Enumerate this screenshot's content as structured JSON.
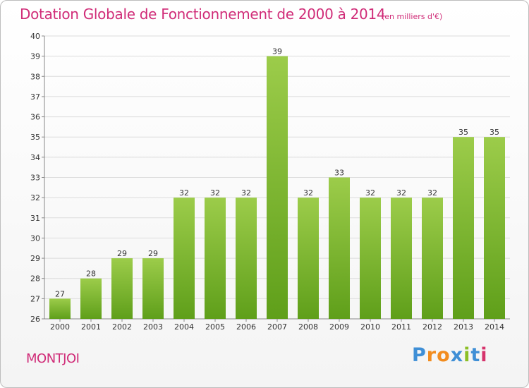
{
  "chart_data": {
    "type": "bar",
    "title": "Dotation Globale de Fonctionnement de 2000 à 2014",
    "subtitle": "(en milliers d'€)",
    "categories": [
      "2000",
      "2001",
      "2002",
      "2003",
      "2004",
      "2005",
      "2006",
      "2007",
      "2008",
      "2009",
      "2010",
      "2011",
      "2012",
      "2013",
      "2014"
    ],
    "values": [
      27,
      28,
      29,
      29,
      32,
      32,
      32,
      39,
      32,
      33,
      32,
      32,
      32,
      35,
      35
    ],
    "ylim": [
      26,
      40
    ],
    "yticks": [
      26,
      27,
      28,
      29,
      30,
      31,
      32,
      33,
      34,
      35,
      36,
      37,
      38,
      39,
      40
    ],
    "grid": true,
    "colors": {
      "bar_light": "#9ccc4a",
      "bar_dark": "#5f9f1a",
      "title": "#d02c78"
    }
  },
  "footer": {
    "place": "MONTJOI",
    "logo": [
      "P",
      "r",
      "o",
      "x",
      "i",
      "t",
      "i"
    ]
  }
}
